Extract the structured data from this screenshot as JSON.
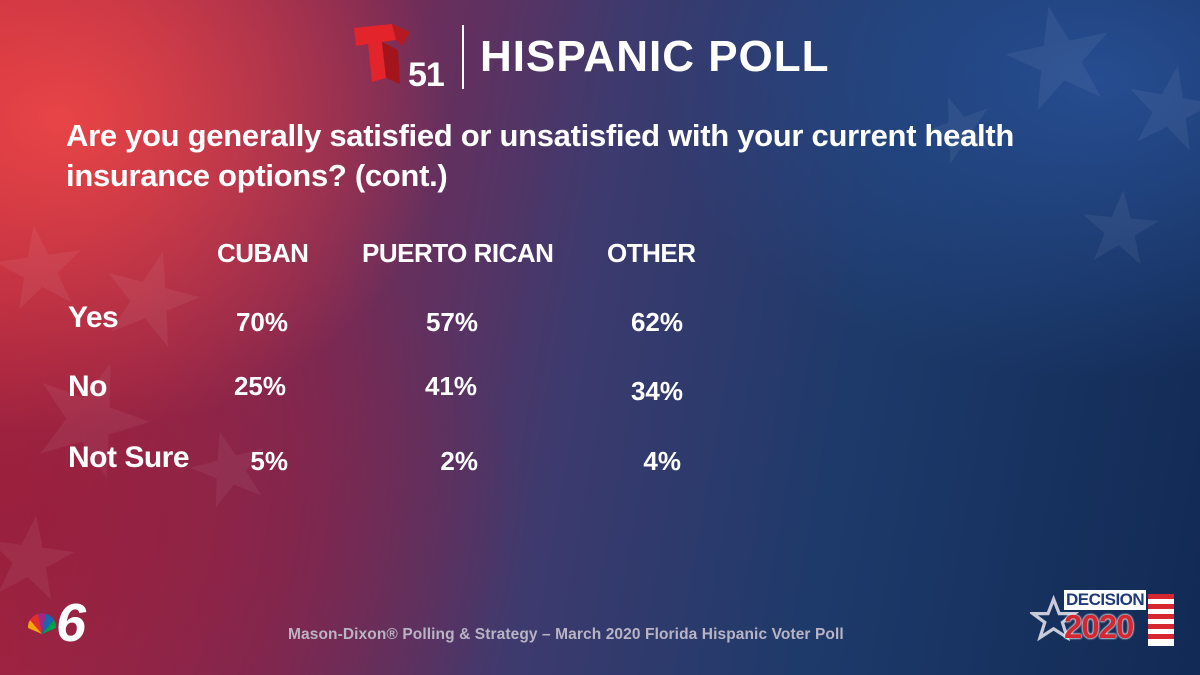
{
  "header": {
    "logo_number": "51",
    "title": "HISPANIC POLL"
  },
  "question": "Are you generally satisfied or unsatisfied with your current health insurance options? (cont.)",
  "chart_data": {
    "type": "table",
    "columns": [
      "CUBAN",
      "PUERTO RICAN",
      "OTHER"
    ],
    "rows": [
      {
        "label": "Yes",
        "values": [
          "70%",
          "57%",
          "62%"
        ]
      },
      {
        "label": "No",
        "values": [
          "25%",
          "41%",
          "34%"
        ]
      },
      {
        "label": "Not Sure",
        "values": [
          "5%",
          "2%",
          "4%"
        ]
      }
    ]
  },
  "source": "Mason-Dixon® Polling & Strategy – March 2020 Florida Hispanic Voter Poll",
  "branding": {
    "station_number": "6",
    "decision_word": "DECISION",
    "decision_year": "2020"
  },
  "colors": {
    "telemundo_red": "#e3242b",
    "decision_blue": "#1f3b78",
    "decision_red": "#d6262f"
  }
}
